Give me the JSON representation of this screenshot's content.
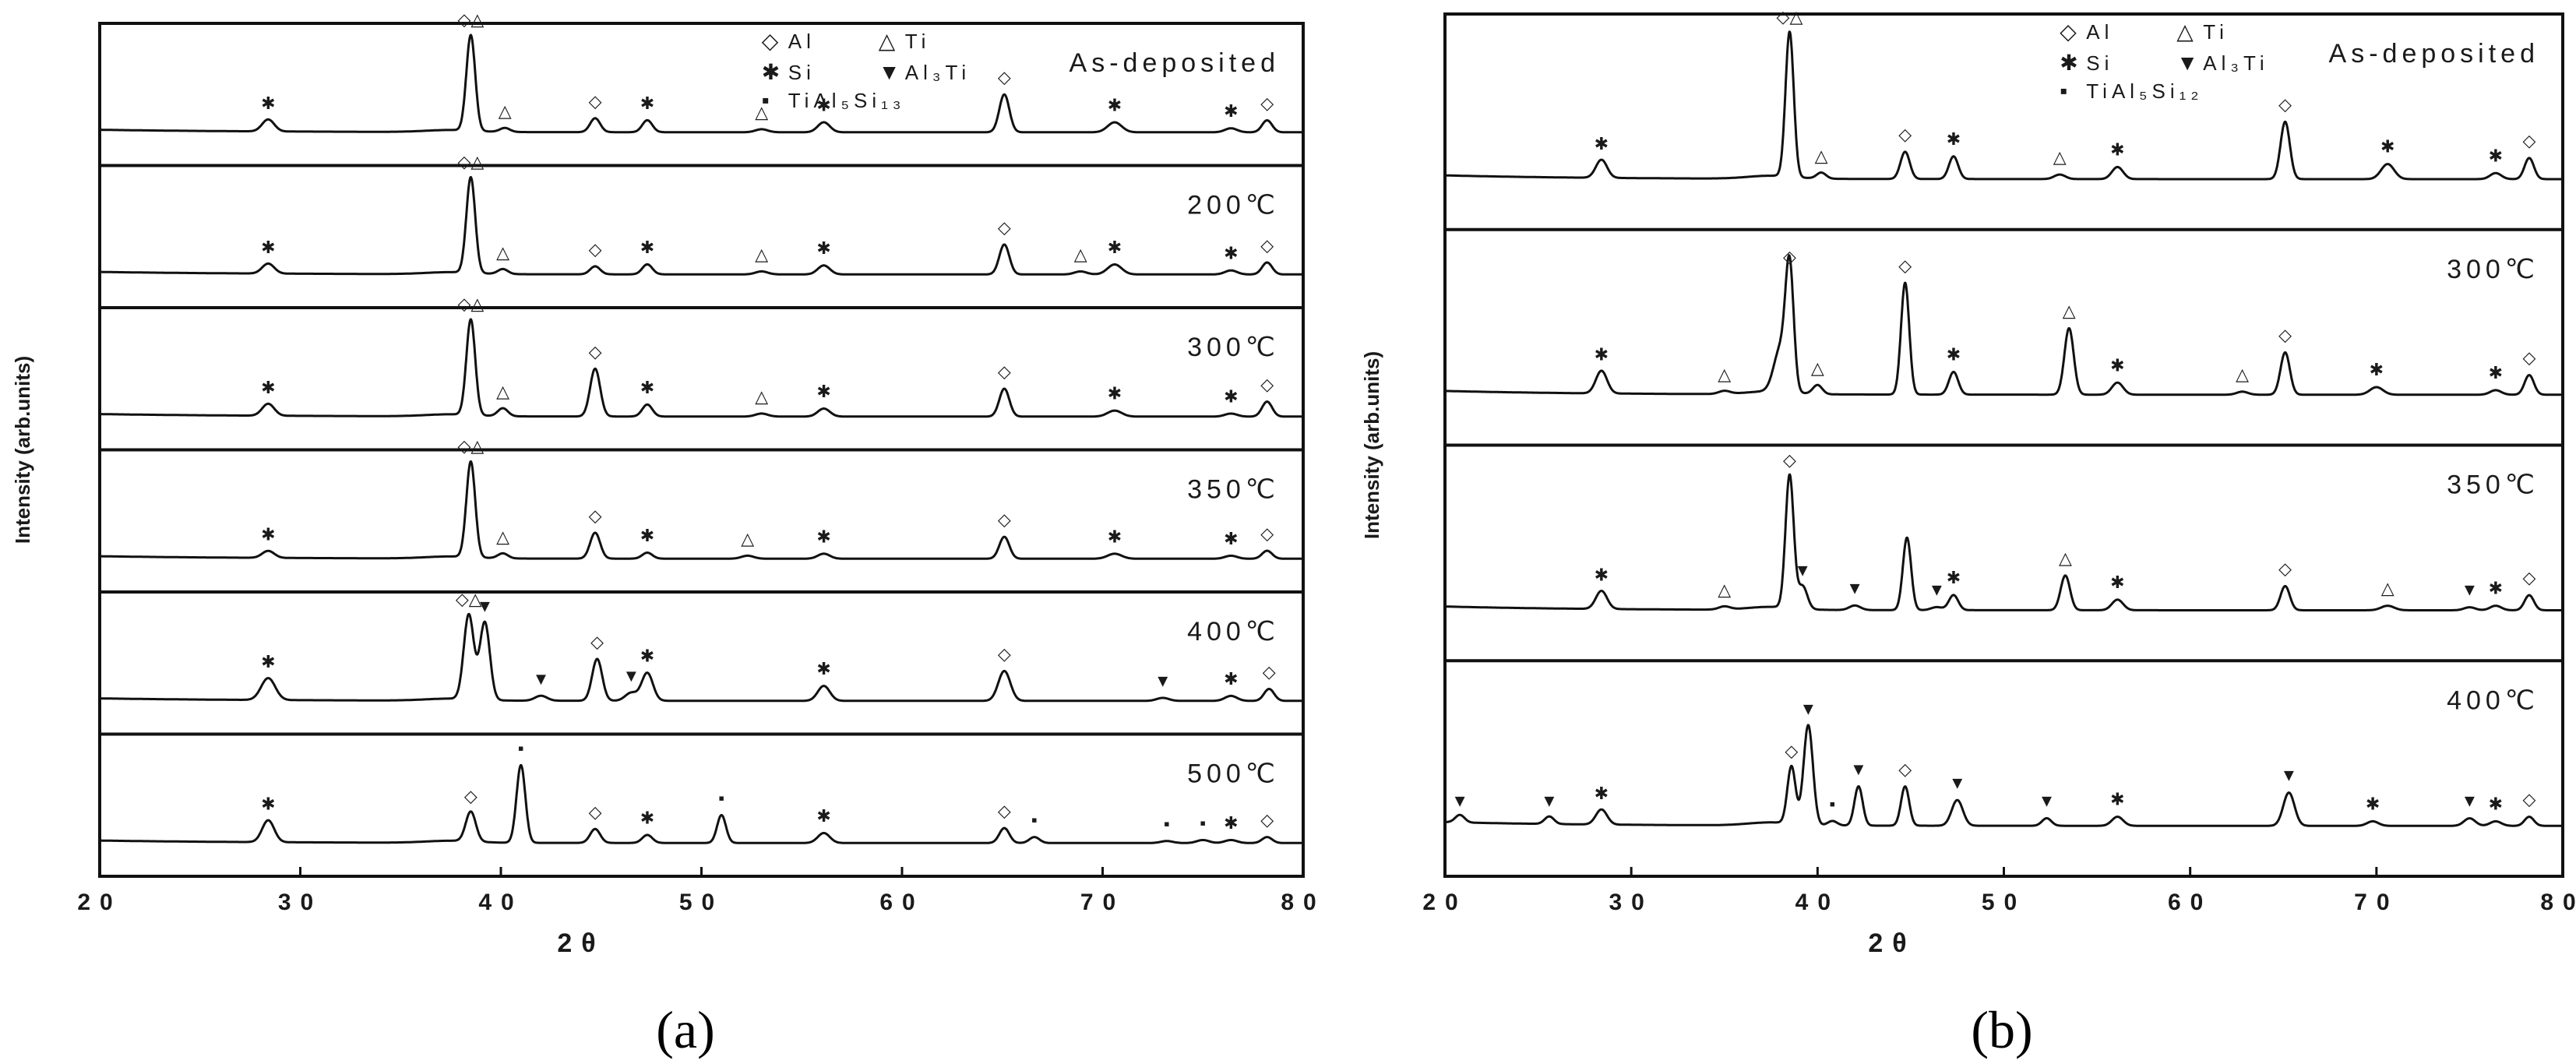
{
  "chart_data": [
    {
      "type": "line",
      "panel_label": "(a)",
      "xlabel": "2θ",
      "ylabel": "Intensity (arb.units)",
      "xlim": [
        20,
        80
      ],
      "x_ticks": [
        "20",
        "30",
        "40",
        "50",
        "60",
        "70",
        "80"
      ],
      "legend": {
        "position": "top-right",
        "entries": [
          {
            "symbol": "◇",
            "label": "Al"
          },
          {
            "symbol": "△",
            "label": "Ti"
          },
          {
            "symbol": "✱",
            "label": "Si"
          },
          {
            "symbol": "▼",
            "label": "Al₃Ti"
          },
          {
            "symbol": "▪",
            "label": "TiAl₅Si₁₃"
          }
        ]
      },
      "series": [
        {
          "name": "As-deposited",
          "peaks": [
            {
              "x": 28.4,
              "y": 0.12,
              "w": 0.3,
              "m": "✱"
            },
            {
              "x": 38.5,
              "y": 0.96,
              "w": 0.22,
              "m": "◇△"
            },
            {
              "x": 40.2,
              "y": 0.04,
              "w": 0.25,
              "m": "△"
            },
            {
              "x": 44.7,
              "y": 0.14,
              "w": 0.25,
              "m": "◇"
            },
            {
              "x": 47.3,
              "y": 0.12,
              "w": 0.25,
              "m": "✱"
            },
            {
              "x": 53.0,
              "y": 0.03,
              "w": 0.3,
              "m": "△"
            },
            {
              "x": 56.1,
              "y": 0.1,
              "w": 0.3,
              "m": "✱"
            },
            {
              "x": 65.1,
              "y": 0.38,
              "w": 0.25,
              "m": "◇"
            },
            {
              "x": 70.6,
              "y": 0.1,
              "w": 0.35,
              "m": "✱"
            },
            {
              "x": 76.4,
              "y": 0.04,
              "w": 0.3,
              "m": "✱"
            },
            {
              "x": 78.2,
              "y": 0.12,
              "w": 0.25,
              "m": "◇"
            }
          ]
        },
        {
          "name": "200℃",
          "peaks": [
            {
              "x": 28.4,
              "y": 0.1,
              "w": 0.3,
              "m": "✱"
            },
            {
              "x": 38.5,
              "y": 0.96,
              "w": 0.22,
              "m": "◇△"
            },
            {
              "x": 40.1,
              "y": 0.05,
              "w": 0.25,
              "m": "△"
            },
            {
              "x": 44.7,
              "y": 0.08,
              "w": 0.25,
              "m": "◇"
            },
            {
              "x": 47.3,
              "y": 0.1,
              "w": 0.25,
              "m": "✱"
            },
            {
              "x": 53.0,
              "y": 0.03,
              "w": 0.3,
              "m": "△"
            },
            {
              "x": 56.1,
              "y": 0.09,
              "w": 0.3,
              "m": "✱"
            },
            {
              "x": 65.1,
              "y": 0.3,
              "w": 0.25,
              "m": "◇"
            },
            {
              "x": 68.9,
              "y": 0.03,
              "w": 0.3,
              "m": "△"
            },
            {
              "x": 70.6,
              "y": 0.1,
              "w": 0.35,
              "m": "✱"
            },
            {
              "x": 76.4,
              "y": 0.04,
              "w": 0.3,
              "m": "✱"
            },
            {
              "x": 78.2,
              "y": 0.12,
              "w": 0.25,
              "m": "◇"
            }
          ]
        },
        {
          "name": "300℃",
          "peaks": [
            {
              "x": 28.4,
              "y": 0.12,
              "w": 0.3,
              "m": "✱"
            },
            {
              "x": 38.5,
              "y": 0.96,
              "w": 0.22,
              "m": "◇△"
            },
            {
              "x": 40.1,
              "y": 0.08,
              "w": 0.25,
              "m": "△"
            },
            {
              "x": 44.7,
              "y": 0.48,
              "w": 0.25,
              "m": "◇"
            },
            {
              "x": 47.3,
              "y": 0.12,
              "w": 0.25,
              "m": "✱"
            },
            {
              "x": 53.0,
              "y": 0.03,
              "w": 0.3,
              "m": "△"
            },
            {
              "x": 56.1,
              "y": 0.08,
              "w": 0.3,
              "m": "✱"
            },
            {
              "x": 65.1,
              "y": 0.28,
              "w": 0.25,
              "m": "◇"
            },
            {
              "x": 70.6,
              "y": 0.06,
              "w": 0.35,
              "m": "✱"
            },
            {
              "x": 76.4,
              "y": 0.03,
              "w": 0.3,
              "m": "✱"
            },
            {
              "x": 78.2,
              "y": 0.15,
              "w": 0.25,
              "m": "◇"
            }
          ]
        },
        {
          "name": "350℃",
          "peaks": [
            {
              "x": 28.4,
              "y": 0.07,
              "w": 0.3,
              "m": "✱"
            },
            {
              "x": 38.5,
              "y": 0.96,
              "w": 0.22,
              "m": "◇△"
            },
            {
              "x": 40.1,
              "y": 0.05,
              "w": 0.25,
              "m": "△"
            },
            {
              "x": 44.7,
              "y": 0.26,
              "w": 0.25,
              "m": "◇"
            },
            {
              "x": 47.3,
              "y": 0.06,
              "w": 0.25,
              "m": "✱"
            },
            {
              "x": 52.3,
              "y": 0.03,
              "w": 0.3,
              "m": "△"
            },
            {
              "x": 56.1,
              "y": 0.05,
              "w": 0.3,
              "m": "✱"
            },
            {
              "x": 65.1,
              "y": 0.22,
              "w": 0.25,
              "m": "◇"
            },
            {
              "x": 70.6,
              "y": 0.05,
              "w": 0.35,
              "m": "✱"
            },
            {
              "x": 76.4,
              "y": 0.03,
              "w": 0.3,
              "m": "✱"
            },
            {
              "x": 78.2,
              "y": 0.08,
              "w": 0.25,
              "m": "◇"
            }
          ]
        },
        {
          "name": "400℃",
          "peaks": [
            {
              "x": 28.4,
              "y": 0.22,
              "w": 0.35,
              "m": "✱"
            },
            {
              "x": 38.4,
              "y": 0.85,
              "w": 0.25,
              "m": "◇△"
            },
            {
              "x": 39.2,
              "y": 0.78,
              "w": 0.25,
              "m": "▼"
            },
            {
              "x": 42.0,
              "y": 0.05,
              "w": 0.3,
              "m": "▼"
            },
            {
              "x": 44.8,
              "y": 0.42,
              "w": 0.25,
              "m": "◇"
            },
            {
              "x": 46.5,
              "y": 0.08,
              "w": 0.3,
              "m": "▼"
            },
            {
              "x": 47.3,
              "y": 0.28,
              "w": 0.28,
              "m": "✱"
            },
            {
              "x": 56.1,
              "y": 0.15,
              "w": 0.3,
              "m": "✱"
            },
            {
              "x": 65.1,
              "y": 0.3,
              "w": 0.3,
              "m": "◇"
            },
            {
              "x": 73.0,
              "y": 0.03,
              "w": 0.3,
              "m": "▼"
            },
            {
              "x": 76.4,
              "y": 0.05,
              "w": 0.3,
              "m": "✱"
            },
            {
              "x": 78.3,
              "y": 0.12,
              "w": 0.25,
              "m": "◇"
            }
          ]
        },
        {
          "name": "500℃",
          "peaks": [
            {
              "x": 28.4,
              "y": 0.22,
              "w": 0.3,
              "m": "✱"
            },
            {
              "x": 38.5,
              "y": 0.3,
              "w": 0.25,
              "m": "◇"
            },
            {
              "x": 41.0,
              "y": 0.78,
              "w": 0.22,
              "m": "▪"
            },
            {
              "x": 44.7,
              "y": 0.14,
              "w": 0.25,
              "m": "◇"
            },
            {
              "x": 47.3,
              "y": 0.08,
              "w": 0.25,
              "m": "✱"
            },
            {
              "x": 51.0,
              "y": 0.28,
              "w": 0.22,
              "m": "▪"
            },
            {
              "x": 56.1,
              "y": 0.1,
              "w": 0.3,
              "m": "✱"
            },
            {
              "x": 65.1,
              "y": 0.15,
              "w": 0.25,
              "m": "◇"
            },
            {
              "x": 66.6,
              "y": 0.06,
              "w": 0.25,
              "m": "▪"
            },
            {
              "x": 73.2,
              "y": 0.02,
              "w": 0.3,
              "m": "▪"
            },
            {
              "x": 75.0,
              "y": 0.03,
              "w": 0.3,
              "m": "▪"
            },
            {
              "x": 76.4,
              "y": 0.03,
              "w": 0.3,
              "m": "✱"
            },
            {
              "x": 78.2,
              "y": 0.06,
              "w": 0.25,
              "m": "◇"
            }
          ]
        }
      ]
    },
    {
      "type": "line",
      "panel_label": "(b)",
      "xlabel": "2θ",
      "ylabel": "Intensity (arb.units)",
      "xlim": [
        20,
        80
      ],
      "x_ticks": [
        "20",
        "30",
        "40",
        "50",
        "60",
        "70",
        "80"
      ],
      "legend": {
        "position": "top-right",
        "entries": [
          {
            "symbol": "◇",
            "label": "Al"
          },
          {
            "symbol": "△",
            "label": "Ti"
          },
          {
            "symbol": "✱",
            "label": "Si"
          },
          {
            "symbol": "▼",
            "label": "Al₃Ti"
          },
          {
            "symbol": "▪",
            "label": "TiAl₅Si₁₂"
          }
        ]
      },
      "series": [
        {
          "name": "As-deposited",
          "peaks": [
            {
              "x": 28.4,
              "y": 0.12,
              "w": 0.3,
              "m": "✱"
            },
            {
              "x": 38.5,
              "y": 0.96,
              "w": 0.22,
              "m": "◇△"
            },
            {
              "x": 40.2,
              "y": 0.04,
              "w": 0.25,
              "m": "△"
            },
            {
              "x": 44.7,
              "y": 0.18,
              "w": 0.25,
              "m": "◇"
            },
            {
              "x": 47.3,
              "y": 0.15,
              "w": 0.25,
              "m": "✱"
            },
            {
              "x": 53.0,
              "y": 0.03,
              "w": 0.3,
              "m": "△"
            },
            {
              "x": 56.1,
              "y": 0.08,
              "w": 0.3,
              "m": "✱"
            },
            {
              "x": 65.1,
              "y": 0.38,
              "w": 0.25,
              "m": "◇"
            },
            {
              "x": 70.6,
              "y": 0.1,
              "w": 0.35,
              "m": "✱"
            },
            {
              "x": 76.4,
              "y": 0.04,
              "w": 0.3,
              "m": "✱"
            },
            {
              "x": 78.2,
              "y": 0.14,
              "w": 0.25,
              "m": "◇"
            }
          ]
        },
        {
          "name": "300℃",
          "peaks": [
            {
              "x": 28.4,
              "y": 0.15,
              "w": 0.3,
              "m": "✱"
            },
            {
              "x": 35.0,
              "y": 0.02,
              "w": 0.3,
              "m": "△"
            },
            {
              "x": 38.0,
              "y": 0.28,
              "w": 0.35,
              "m": ""
            },
            {
              "x": 38.5,
              "y": 0.8,
              "w": 0.22,
              "m": "◇"
            },
            {
              "x": 40.0,
              "y": 0.06,
              "w": 0.25,
              "m": "△"
            },
            {
              "x": 44.7,
              "y": 0.74,
              "w": 0.22,
              "m": "◇"
            },
            {
              "x": 47.3,
              "y": 0.15,
              "w": 0.25,
              "m": "✱"
            },
            {
              "x": 53.5,
              "y": 0.44,
              "w": 0.25,
              "m": "△"
            },
            {
              "x": 56.1,
              "y": 0.08,
              "w": 0.3,
              "m": "✱"
            },
            {
              "x": 62.8,
              "y": 0.02,
              "w": 0.3,
              "m": "△"
            },
            {
              "x": 65.1,
              "y": 0.28,
              "w": 0.25,
              "m": "◇"
            },
            {
              "x": 70.0,
              "y": 0.05,
              "w": 0.35,
              "m": "✱"
            },
            {
              "x": 76.4,
              "y": 0.03,
              "w": 0.3,
              "m": "✱"
            },
            {
              "x": 78.2,
              "y": 0.13,
              "w": 0.25,
              "m": "◇"
            }
          ]
        },
        {
          "name": "350℃",
          "peaks": [
            {
              "x": 28.4,
              "y": 0.12,
              "w": 0.3,
              "m": "✱"
            },
            {
              "x": 35.0,
              "y": 0.02,
              "w": 0.3,
              "m": "△"
            },
            {
              "x": 38.5,
              "y": 0.88,
              "w": 0.22,
              "m": "◇"
            },
            {
              "x": 39.2,
              "y": 0.15,
              "w": 0.25,
              "m": "▼"
            },
            {
              "x": 42.0,
              "y": 0.03,
              "w": 0.3,
              "m": "▼"
            },
            {
              "x": 44.8,
              "y": 0.48,
              "w": 0.22,
              "m": ""
            },
            {
              "x": 46.4,
              "y": 0.02,
              "w": 0.3,
              "m": "▼"
            },
            {
              "x": 47.3,
              "y": 0.1,
              "w": 0.25,
              "m": "✱"
            },
            {
              "x": 53.3,
              "y": 0.23,
              "w": 0.25,
              "m": "△"
            },
            {
              "x": 56.1,
              "y": 0.07,
              "w": 0.3,
              "m": "✱"
            },
            {
              "x": 65.1,
              "y": 0.16,
              "w": 0.25,
              "m": "◇"
            },
            {
              "x": 70.6,
              "y": 0.03,
              "w": 0.35,
              "m": "△"
            },
            {
              "x": 75.0,
              "y": 0.02,
              "w": 0.3,
              "m": "▼"
            },
            {
              "x": 76.4,
              "y": 0.03,
              "w": 0.3,
              "m": "✱"
            },
            {
              "x": 78.2,
              "y": 0.1,
              "w": 0.25,
              "m": "◇"
            }
          ]
        },
        {
          "name": "400℃",
          "peaks": [
            {
              "x": 20.8,
              "y": 0.05,
              "w": 0.25,
              "m": "▼"
            },
            {
              "x": 25.6,
              "y": 0.05,
              "w": 0.25,
              "m": "▼"
            },
            {
              "x": 28.4,
              "y": 0.1,
              "w": 0.3,
              "m": "✱"
            },
            {
              "x": 38.6,
              "y": 0.38,
              "w": 0.22,
              "m": "◇"
            },
            {
              "x": 39.5,
              "y": 0.66,
              "w": 0.25,
              "m": "▼"
            },
            {
              "x": 40.8,
              "y": 0.03,
              "w": 0.25,
              "m": "▪"
            },
            {
              "x": 42.2,
              "y": 0.26,
              "w": 0.22,
              "m": "▼"
            },
            {
              "x": 44.7,
              "y": 0.26,
              "w": 0.22,
              "m": "◇"
            },
            {
              "x": 47.5,
              "y": 0.17,
              "w": 0.3,
              "m": "▼"
            },
            {
              "x": 52.3,
              "y": 0.05,
              "w": 0.25,
              "m": "▼"
            },
            {
              "x": 56.1,
              "y": 0.06,
              "w": 0.3,
              "m": "✱"
            },
            {
              "x": 65.3,
              "y": 0.22,
              "w": 0.3,
              "m": "▼"
            },
            {
              "x": 69.8,
              "y": 0.03,
              "w": 0.3,
              "m": "✱"
            },
            {
              "x": 75.0,
              "y": 0.05,
              "w": 0.3,
              "m": "▼"
            },
            {
              "x": 76.4,
              "y": 0.03,
              "w": 0.3,
              "m": "✱"
            },
            {
              "x": 78.2,
              "y": 0.06,
              "w": 0.25,
              "m": "◇"
            }
          ]
        }
      ]
    }
  ]
}
